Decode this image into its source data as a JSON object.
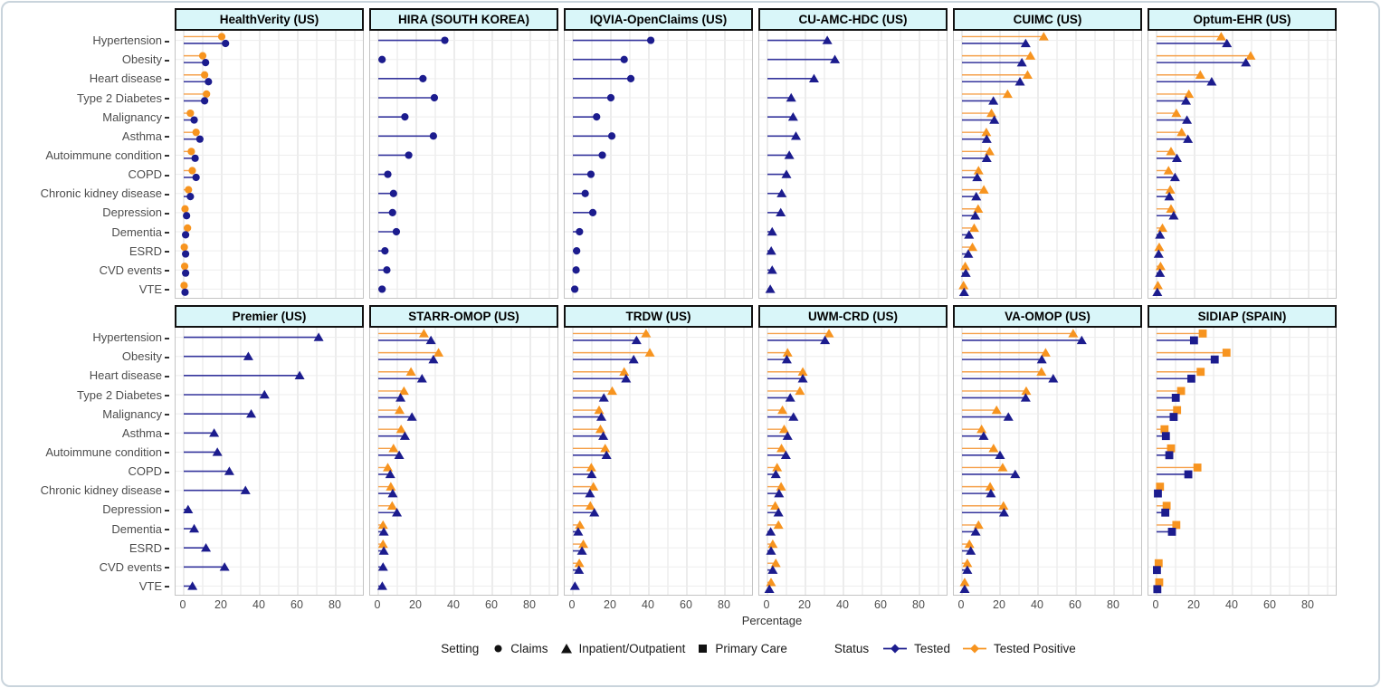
{
  "chart_data": {
    "type": "lollipop-facet-grid",
    "xlabel": "Percentage",
    "x_ticks": [
      0,
      20,
      40,
      60,
      80
    ],
    "x_max": 90,
    "grid": "on",
    "categories": [
      "Hypertension",
      "Obesity",
      "Heart disease",
      "Type 2 Diabetes",
      "Malignancy",
      "Asthma",
      "Autoimmune condition",
      "COPD",
      "Chronic kidney disease",
      "Depression",
      "Dementia",
      "ESRD",
      "CVD events",
      "VTE"
    ],
    "colors": {
      "tested": "#1c1c8e",
      "tested_positive": "#f7941f",
      "tested_line": "#34349c",
      "tested_positive_line": "#f5a04a",
      "strip_bg": "#d9f6f9",
      "grid_minor": "#e6e6e6",
      "grid_major": "#d9d9d9",
      "legend_glyph": "#111111"
    },
    "facets": [
      {
        "title": "HealthVerity (US)",
        "setting": "claims",
        "tested": [
          22,
          11.5,
          13,
          11,
          5.5,
          8.5,
          6,
          6.5,
          3.5,
          1.5,
          1,
          1,
          1,
          0.7
        ],
        "tested_positive": [
          20,
          10,
          11,
          12,
          3.5,
          6.5,
          4,
          4.5,
          2.5,
          0.7,
          2,
          0.3,
          0.5,
          0.2
        ]
      },
      {
        "title": "HIRA (SOUTH KOREA)",
        "setting": "claims",
        "tested": [
          35,
          2,
          23.5,
          29.5,
          14,
          29,
          16,
          5,
          8,
          7.5,
          9.5,
          3.5,
          4.5,
          2
        ],
        "tested_positive": null
      },
      {
        "title": "IQVIA-OpenClaims (US)",
        "setting": "claims",
        "tested": [
          41,
          27,
          30.5,
          20,
          12.5,
          20.5,
          15.5,
          9.5,
          6.5,
          10.5,
          3.5,
          2,
          1.7,
          1
        ],
        "tested_positive": null
      },
      {
        "title": "CU-AMC-HDC (US)",
        "setting": "inpatient",
        "tested": [
          31.5,
          35.5,
          24.5,
          12.5,
          13.5,
          15,
          11.5,
          10,
          7.5,
          7,
          2.5,
          2,
          2.5,
          1.5
        ],
        "tested_positive": null
      },
      {
        "title": "CUIMC (US)",
        "setting": "inpatient",
        "tested": [
          33.5,
          31.5,
          30.5,
          16.5,
          17,
          13,
          13,
          8,
          7.5,
          7,
          3.7,
          3.3,
          2,
          1.1
        ],
        "tested_positive": [
          43,
          36,
          34.5,
          24,
          15.5,
          12.8,
          14.5,
          8.7,
          11.5,
          8.5,
          6.4,
          5.5,
          1.7,
          0.8
        ]
      },
      {
        "title": "Optum-EHR (US)",
        "setting": "inpatient",
        "tested": [
          37,
          47,
          29,
          15.5,
          16,
          16.5,
          10.7,
          9.7,
          6.7,
          9,
          1.8,
          1.1,
          1.8,
          0.4
        ],
        "tested_positive": [
          34,
          49.5,
          23,
          17,
          10.4,
          13.2,
          7.6,
          6.3,
          7.2,
          7.6,
          3.1,
          1.4,
          2.1,
          0.7
        ]
      },
      {
        "title": "Premier (US)",
        "setting": "inpatient",
        "tested": [
          71,
          34,
          61,
          42.5,
          35.5,
          16,
          17.7,
          24,
          32.5,
          2.3,
          5.5,
          11.7,
          21.5,
          4.6
        ],
        "tested_positive": null
      },
      {
        "title": "STARR-OMOP (US)",
        "setting": "inpatient",
        "tested": [
          27.7,
          29,
          23,
          11.7,
          17.7,
          14,
          11,
          6.3,
          7.6,
          9.8,
          2.9,
          2.9,
          2.5,
          2.1
        ],
        "tested_positive": [
          24,
          31.7,
          17.2,
          13.5,
          11.2,
          12,
          8,
          5,
          6.6,
          7.3,
          2.5,
          2.5,
          null,
          null
        ]
      },
      {
        "title": "TRDW (US)",
        "setting": "inpatient",
        "tested": [
          33.5,
          32,
          28,
          16.3,
          15,
          16,
          17.7,
          9.9,
          9,
          11.3,
          2.8,
          4.8,
          3.2,
          1.1
        ],
        "tested_positive": [
          38.5,
          40.5,
          27,
          20.7,
          13.8,
          14.5,
          17,
          9.7,
          10.8,
          9.2,
          3.7,
          5.5,
          3.4,
          null
        ]
      },
      {
        "title": "UWM-CRD (US)",
        "setting": "inpatient",
        "tested": [
          30.3,
          10.2,
          18.6,
          12,
          13.7,
          10.6,
          9.7,
          4.4,
          6.1,
          5.8,
          1.7,
          1.9,
          2.8,
          1
        ],
        "tested_positive": [
          32.4,
          10.6,
          18.6,
          17.1,
          7.9,
          8.8,
          7.4,
          5.1,
          7.2,
          4.1,
          5.8,
          2.8,
          4.4,
          1.9
        ]
      },
      {
        "title": "VA-OMOP (US)",
        "setting": "inpatient",
        "tested": [
          63,
          42,
          48,
          33.5,
          24.4,
          11.4,
          20,
          28,
          15.2,
          22.1,
          7.2,
          4.6,
          2.8,
          1.4
        ],
        "tested_positive": [
          58.5,
          44,
          41.8,
          33.8,
          18.2,
          10.3,
          16.6,
          21.4,
          14.8,
          21.8,
          8.7,
          3.9,
          2.8,
          1.4
        ]
      },
      {
        "title": "SIDIAP (SPAIN)",
        "setting": "primary_care",
        "tested": [
          19.7,
          30.6,
          18.3,
          10.1,
          9,
          4.9,
          6.7,
          16.7,
          0.7,
          4.6,
          8.1,
          null,
          0.2,
          0.4
        ],
        "tested_positive": [
          24.3,
          36.8,
          23.2,
          12.9,
          10.8,
          4.2,
          7.6,
          21.5,
          1.8,
          5.3,
          10.4,
          null,
          1.1,
          1.4
        ]
      }
    ],
    "legend": {
      "setting_label": "Setting",
      "setting_items": [
        {
          "label": "Claims",
          "shape": "circle"
        },
        {
          "label": "Inpatient/Outpatient",
          "shape": "triangle"
        },
        {
          "label": "Primary Care",
          "shape": "square"
        }
      ],
      "status_label": "Status",
      "status_items": [
        {
          "label": "Tested",
          "color_key": "tested"
        },
        {
          "label": "Tested Positive",
          "color_key": "tested_positive"
        }
      ]
    }
  }
}
